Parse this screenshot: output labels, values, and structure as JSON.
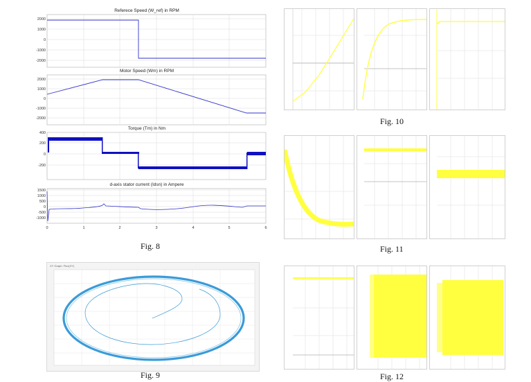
{
  "fig8": {
    "caption": "Fig. 8",
    "panels": [
      {
        "title": "Referece Speed (W_ref) in RPM",
        "yticks": [
          "2000",
          "1000",
          "0",
          "-1000",
          "-2000"
        ]
      },
      {
        "title": "Motor Speed (Wm) in RPM",
        "yticks": [
          "2000",
          "1000",
          "0",
          "-1000",
          "-2000"
        ]
      },
      {
        "title": "Torque (Tm) in Nm",
        "yticks": [
          "400",
          "200",
          "0",
          "-200"
        ]
      },
      {
        "title": "d-axis stator current (Idsn) in Ampere",
        "yticks": [
          "1500",
          "1000",
          "500",
          "0",
          "-500",
          "-1000"
        ]
      }
    ],
    "xticks": [
      "0",
      "1",
      "2",
      "3",
      "4",
      "5",
      "6"
    ]
  },
  "fig9": {
    "caption": "Fig. 9",
    "header": "XY Graph: Flux(XY)"
  },
  "fig10": {
    "caption": "Fig. 10"
  },
  "fig11": {
    "caption": "Fig. 11"
  },
  "fig12": {
    "caption": "Fig. 12"
  },
  "colors": {
    "trace": "#3333cc",
    "torque": "#1010c0",
    "yellow": "#ffff40",
    "flux": "#3a9bd8",
    "grid": "#d8d8d8"
  }
}
